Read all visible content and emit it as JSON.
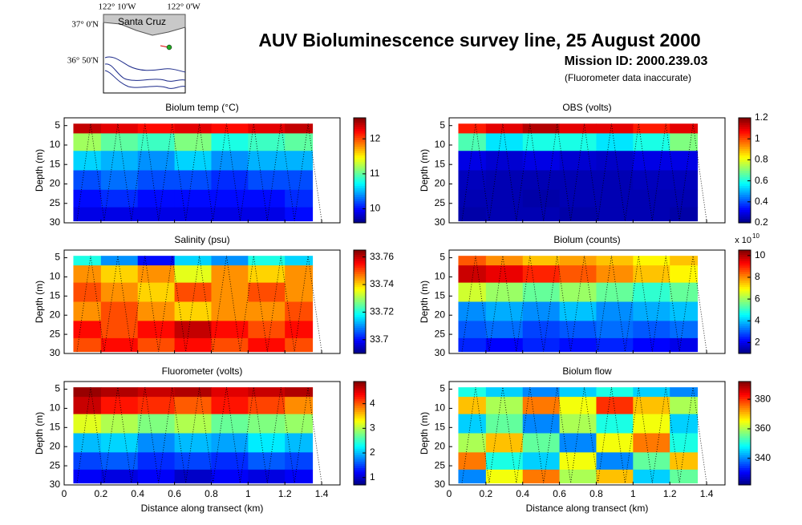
{
  "title": "AUV Bioluminescence survey line, 25 August 2000",
  "subtitle": "Mission ID: 2000.239.03",
  "note": "(Fluorometer data inaccurate)",
  "map": {
    "lon_labels": [
      "122° 10'W",
      "122° 0'W"
    ],
    "lat_labels": [
      "37° 0'N",
      "36° 50'N"
    ],
    "place": "Santa Cruz"
  },
  "chart_data": [
    {
      "type": "heatmap",
      "title": "Biolum temp (°C)",
      "y_label": "Depth (m)",
      "xlim": [
        0,
        1.5
      ],
      "xticks": [
        0,
        0.2,
        0.4,
        0.6,
        0.8,
        1,
        1.2,
        1.4
      ],
      "ylim": [
        3,
        30
      ],
      "yticks": [
        5,
        10,
        15,
        20,
        25,
        30
      ],
      "clim": [
        9.6,
        12.6
      ],
      "cticks": [
        10,
        11,
        12
      ],
      "x": [
        0.1,
        0.3,
        0.5,
        0.7,
        0.9,
        1.1,
        1.3
      ],
      "depth": [
        5,
        9,
        14,
        19,
        24,
        28
      ],
      "z": [
        [
          12.4,
          12.3,
          12.2,
          12.3,
          12.2,
          12.3,
          12.4
        ],
        [
          11.2,
          11.0,
          10.9,
          11.1,
          10.8,
          10.9,
          11.0
        ],
        [
          10.6,
          10.5,
          10.4,
          10.6,
          10.4,
          10.5,
          10.5
        ],
        [
          10.2,
          10.3,
          10.2,
          10.2,
          10.1,
          10.2,
          10.2
        ],
        [
          10.0,
          10.1,
          10.0,
          10.0,
          10.0,
          10.0,
          10.1
        ],
        [
          9.9,
          9.9,
          9.9,
          9.9,
          9.9,
          9.9,
          10.0
        ]
      ]
    },
    {
      "type": "heatmap",
      "title": "OBS (volts)",
      "y_label": "Depth (m)",
      "xlim": [
        0,
        1.5
      ],
      "xticks": [
        0,
        0.2,
        0.4,
        0.6,
        0.8,
        1,
        1.2,
        1.4
      ],
      "ylim": [
        3,
        30
      ],
      "yticks": [
        5,
        10,
        15,
        20,
        25,
        30
      ],
      "clim": [
        0.2,
        1.2
      ],
      "cticks": [
        0.2,
        0.4,
        0.6,
        0.8,
        1,
        1.2
      ],
      "x": [
        0.1,
        0.3,
        0.5,
        0.7,
        0.9,
        1.1,
        1.3
      ],
      "depth": [
        5,
        9,
        14,
        19,
        24,
        28
      ],
      "z": [
        [
          1.05,
          1.1,
          1.15,
          1.1,
          1.1,
          1.05,
          1.1
        ],
        [
          0.65,
          0.55,
          0.6,
          0.6,
          0.55,
          0.6,
          0.7
        ],
        [
          0.3,
          0.28,
          0.3,
          0.28,
          0.27,
          0.3,
          0.3
        ],
        [
          0.26,
          0.25,
          0.25,
          0.25,
          0.25,
          0.26,
          0.26
        ],
        [
          0.25,
          0.25,
          0.24,
          0.25,
          0.25,
          0.25,
          0.25
        ],
        [
          0.24,
          0.25,
          0.25,
          0.24,
          0.25,
          0.25,
          0.24
        ]
      ]
    },
    {
      "type": "heatmap",
      "title": "Salinity (psu)",
      "y_label": "Depth (m)",
      "xlim": [
        0,
        1.5
      ],
      "xticks": [
        0,
        0.2,
        0.4,
        0.6,
        0.8,
        1,
        1.2,
        1.4
      ],
      "ylim": [
        3,
        30
      ],
      "yticks": [
        5,
        10,
        15,
        20,
        25,
        30
      ],
      "clim": [
        33.69,
        33.765
      ],
      "cticks": [
        33.7,
        33.72,
        33.74,
        33.76
      ],
      "x": [
        0.1,
        0.3,
        0.5,
        0.7,
        0.9,
        1.1,
        1.3
      ],
      "depth": [
        5,
        9,
        14,
        19,
        24,
        28
      ],
      "z": [
        [
          33.72,
          33.71,
          33.7,
          33.715,
          33.71,
          33.72,
          33.715
        ],
        [
          33.745,
          33.74,
          33.745,
          33.735,
          33.745,
          33.74,
          33.745
        ],
        [
          33.75,
          33.745,
          33.74,
          33.75,
          33.745,
          33.75,
          33.745
        ],
        [
          33.745,
          33.75,
          33.745,
          33.74,
          33.745,
          33.745,
          33.75
        ],
        [
          33.755,
          33.75,
          33.755,
          33.76,
          33.755,
          33.75,
          33.755
        ],
        [
          33.75,
          33.755,
          33.75,
          33.755,
          33.75,
          33.755,
          33.75
        ]
      ]
    },
    {
      "type": "heatmap",
      "title": "Biolum (counts)",
      "y_label": "Depth (m)",
      "xlim": [
        0,
        1.5
      ],
      "xticks": [
        0,
        0.2,
        0.4,
        0.6,
        0.8,
        1,
        1.2,
        1.4
      ],
      "ylim": [
        3,
        30
      ],
      "yticks": [
        5,
        10,
        15,
        20,
        25,
        30
      ],
      "clim": [
        1,
        10.5
      ],
      "cticks": [
        2,
        4,
        6,
        8,
        10
      ],
      "cscale": {
        "base": "x 10",
        "exponent": "10"
      },
      "x": [
        0.1,
        0.3,
        0.5,
        0.7,
        0.9,
        1.1,
        1.3
      ],
      "depth": [
        5,
        9,
        14,
        19,
        24,
        28
      ],
      "z": [
        [
          8.5,
          8,
          7.5,
          7.8,
          7.5,
          7,
          7.5
        ],
        [
          9.8,
          9.5,
          9,
          8.5,
          8,
          7.5,
          7
        ],
        [
          6.5,
          6,
          5.5,
          6,
          5.5,
          5,
          5.5
        ],
        [
          3.5,
          3.8,
          3.5,
          4,
          3.5,
          3.8,
          4
        ],
        [
          3,
          3.2,
          2.8,
          3,
          3.2,
          3,
          3.2
        ],
        [
          2.5,
          2.2,
          2.5,
          2.3,
          2.5,
          2.2,
          2
        ]
      ]
    },
    {
      "type": "heatmap",
      "title": "Fluorometer (volts)",
      "y_label": "Depth (m)",
      "x_label": "Distance along transect (km)",
      "xlim": [
        0,
        1.5
      ],
      "xticks": [
        0,
        0.2,
        0.4,
        0.6,
        0.8,
        1,
        1.2,
        1.4
      ],
      "ylim": [
        3,
        30
      ],
      "yticks": [
        5,
        10,
        15,
        20,
        25,
        30
      ],
      "clim": [
        0.7,
        4.9
      ],
      "cticks": [
        1,
        2,
        3,
        4
      ],
      "x": [
        0.1,
        0.3,
        0.5,
        0.7,
        0.9,
        1.1,
        1.3
      ],
      "depth": [
        5,
        9,
        14,
        19,
        24,
        28
      ],
      "z": [
        [
          4.8,
          4.7,
          4.6,
          4.7,
          4.5,
          4.6,
          4.7
        ],
        [
          4.6,
          4.3,
          4.2,
          4.0,
          4.3,
          4.1,
          3.8
        ],
        [
          3.2,
          3.0,
          2.8,
          3.0,
          2.7,
          2.8,
          2.9
        ],
        [
          2.0,
          2.1,
          1.8,
          2.0,
          1.9,
          2.2,
          2.0
        ],
        [
          1.5,
          1.6,
          1.4,
          1.5,
          1.4,
          1.6,
          1.5
        ],
        [
          1.2,
          1.1,
          1.2,
          1.0,
          1.2,
          1.1,
          1.2
        ]
      ]
    },
    {
      "type": "heatmap",
      "title": "Biolum flow",
      "y_label": "Depth (m)",
      "x_label": "Distance along transect (km)",
      "xlim": [
        0,
        1.5
      ],
      "xticks": [
        0,
        0.2,
        0.4,
        0.6,
        0.8,
        1,
        1.2,
        1.4
      ],
      "ylim": [
        3,
        30
      ],
      "yticks": [
        5,
        10,
        15,
        20,
        25,
        30
      ],
      "clim": [
        322,
        392
      ],
      "cticks": [
        340,
        360,
        380
      ],
      "x": [
        0.1,
        0.3,
        0.5,
        0.7,
        0.9,
        1.1,
        1.3
      ],
      "depth": [
        5,
        9,
        14,
        19,
        24,
        28
      ],
      "z": [
        [
          350,
          345,
          340,
          345,
          350,
          345,
          340
        ],
        [
          370,
          360,
          375,
          365,
          380,
          370,
          360
        ],
        [
          345,
          355,
          340,
          360,
          350,
          365,
          345
        ],
        [
          360,
          370,
          355,
          340,
          365,
          375,
          350
        ],
        [
          375,
          350,
          345,
          365,
          340,
          355,
          370
        ],
        [
          340,
          365,
          375,
          360,
          370,
          345,
          355
        ]
      ]
    }
  ]
}
